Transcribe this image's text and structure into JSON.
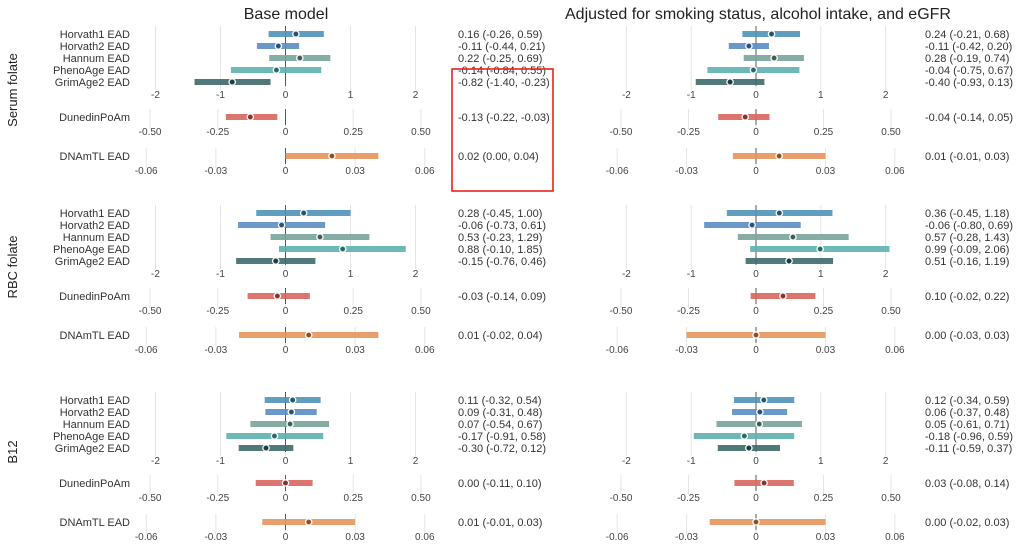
{
  "chart_data": {
    "type": "forest",
    "panel_titles": [
      "Base model",
      "Adjusted for smoking status, alcohol intake, and eGFR"
    ],
    "rows": [
      "Serum folate",
      "RBC folate",
      "B12"
    ],
    "colors": {
      "Horvath1 EAD": "#4f93b8",
      "Horvath2 EAD": "#5a8fc4",
      "Hannum EAD": "#7aa59a",
      "PhenoAge EAD": "#5fb2b0",
      "GrimAge2 EAD": "#3f6b6b",
      "DunedinPoAm": "#d9675f",
      "DNAmTL EAD": "#e6955c"
    },
    "axes": {
      "ead": {
        "lim": [
          -2.5,
          2.5
        ],
        "ticks": [
          -2,
          -1,
          0,
          1,
          2
        ]
      },
      "dunedin": {
        "lim": [
          -0.6,
          0.6
        ],
        "ticks": [
          -0.5,
          -0.25,
          0,
          0.25,
          0.5
        ]
      },
      "dnamtl": {
        "lim": [
          -0.07,
          0.07
        ],
        "ticks": [
          -0.06,
          -0.03,
          0,
          0.03,
          0.06
        ]
      }
    },
    "groups": [
      {
        "row": 0,
        "col": 0,
        "ead": [
          {
            "label": "Horvath1 EAD",
            "est": 0.16,
            "lo": -0.26,
            "hi": 0.59,
            "text": "0.16 (-0.26, 0.59)"
          },
          {
            "label": "Horvath2 EAD",
            "est": -0.11,
            "lo": -0.44,
            "hi": 0.21,
            "text": "-0.11 (-0.44, 0.21)"
          },
          {
            "label": "Hannum EAD",
            "est": 0.22,
            "lo": -0.25,
            "hi": 0.69,
            "text": "0.22 (-0.25, 0.69)"
          },
          {
            "label": "PhenoAge EAD",
            "est": -0.14,
            "lo": -0.84,
            "hi": 0.55,
            "text": "-0.14 (-0.84, 0.55)"
          },
          {
            "label": "GrimAge2 EAD",
            "est": -0.82,
            "lo": -1.4,
            "hi": -0.23,
            "text": "-0.82 (-1.40, -0.23)"
          }
        ],
        "dunedin": {
          "label": "DunedinPoAm",
          "est": -0.13,
          "lo": -0.22,
          "hi": -0.03,
          "text": "-0.13 (-0.22, -0.03)"
        },
        "dnamtl": {
          "label": "DNAmTL EAD",
          "est": 0.02,
          "lo": 0.0,
          "hi": 0.04,
          "text": "0.02 (0.00, 0.04)"
        }
      },
      {
        "row": 0,
        "col": 1,
        "ead": [
          {
            "label": "Horvath1 EAD",
            "est": 0.24,
            "lo": -0.21,
            "hi": 0.68,
            "text": "0.24 (-0.21, 0.68)"
          },
          {
            "label": "Horvath2 EAD",
            "est": -0.11,
            "lo": -0.42,
            "hi": 0.2,
            "text": "-0.11 (-0.42, 0.20)"
          },
          {
            "label": "Hannum EAD",
            "est": 0.28,
            "lo": -0.19,
            "hi": 0.74,
            "text": "0.28 (-0.19, 0.74)"
          },
          {
            "label": "PhenoAge EAD",
            "est": -0.04,
            "lo": -0.75,
            "hi": 0.67,
            "text": "-0.04 (-0.75, 0.67)"
          },
          {
            "label": "GrimAge2 EAD",
            "est": -0.4,
            "lo": -0.93,
            "hi": 0.13,
            "text": "-0.40 (-0.93, 0.13)"
          }
        ],
        "dunedin": {
          "label": "DunedinPoAm",
          "est": -0.04,
          "lo": -0.14,
          "hi": 0.05,
          "text": "-0.04 (-0.14, 0.05)"
        },
        "dnamtl": {
          "label": "DNAmTL EAD",
          "est": 0.01,
          "lo": -0.01,
          "hi": 0.03,
          "text": "0.01 (-0.01, 0.03)"
        }
      },
      {
        "row": 1,
        "col": 0,
        "ead": [
          {
            "label": "Horvath1 EAD",
            "est": 0.28,
            "lo": -0.45,
            "hi": 1.0,
            "text": "0.28 (-0.45, 1.00)"
          },
          {
            "label": "Horvath2 EAD",
            "est": -0.06,
            "lo": -0.73,
            "hi": 0.61,
            "text": "-0.06 (-0.73, 0.61)"
          },
          {
            "label": "Hannum EAD",
            "est": 0.53,
            "lo": -0.23,
            "hi": 1.29,
            "text": "0.53 (-0.23, 1.29)"
          },
          {
            "label": "PhenoAge EAD",
            "est": 0.88,
            "lo": -0.1,
            "hi": 1.85,
            "text": "0.88 (-0.10, 1.85)"
          },
          {
            "label": "GrimAge2 EAD",
            "est": -0.15,
            "lo": -0.76,
            "hi": 0.46,
            "text": "-0.15 (-0.76, 0.46)"
          }
        ],
        "dunedin": {
          "label": "DunedinPoAm",
          "est": -0.03,
          "lo": -0.14,
          "hi": 0.09,
          "text": "-0.03 (-0.14, 0.09)"
        },
        "dnamtl": {
          "label": "DNAmTL EAD",
          "est": 0.01,
          "lo": -0.02,
          "hi": 0.04,
          "text": "0.01 (-0.02, 0.04)"
        }
      },
      {
        "row": 1,
        "col": 1,
        "ead": [
          {
            "label": "Horvath1 EAD",
            "est": 0.36,
            "lo": -0.45,
            "hi": 1.18,
            "text": "0.36 (-0.45, 1.18)"
          },
          {
            "label": "Horvath2 EAD",
            "est": -0.06,
            "lo": -0.8,
            "hi": 0.69,
            "text": "-0.06 (-0.80, 0.69)"
          },
          {
            "label": "Hannum EAD",
            "est": 0.57,
            "lo": -0.28,
            "hi": 1.43,
            "text": "0.57 (-0.28, 1.43)"
          },
          {
            "label": "PhenoAge EAD",
            "est": 0.99,
            "lo": -0.09,
            "hi": 2.06,
            "text": "0.99 (-0.09, 2.06)"
          },
          {
            "label": "GrimAge2 EAD",
            "est": 0.51,
            "lo": -0.16,
            "hi": 1.19,
            "text": "0.51 (-0.16, 1.19)"
          }
        ],
        "dunedin": {
          "label": "DunedinPoAm",
          "est": 0.1,
          "lo": -0.02,
          "hi": 0.22,
          "text": "0.10 (-0.02, 0.22)"
        },
        "dnamtl": {
          "label": "DNAmTL EAD",
          "est": 0.0,
          "lo": -0.03,
          "hi": 0.03,
          "text": "0.00 (-0.03, 0.03)"
        }
      },
      {
        "row": 2,
        "col": 0,
        "ead": [
          {
            "label": "Horvath1 EAD",
            "est": 0.11,
            "lo": -0.32,
            "hi": 0.54,
            "text": "0.11 (-0.32, 0.54)"
          },
          {
            "label": "Horvath2 EAD",
            "est": 0.09,
            "lo": -0.31,
            "hi": 0.48,
            "text": "0.09 (-0.31, 0.48)"
          },
          {
            "label": "Hannum EAD",
            "est": 0.07,
            "lo": -0.54,
            "hi": 0.67,
            "text": "0.07 (-0.54, 0.67)"
          },
          {
            "label": "PhenoAge EAD",
            "est": -0.17,
            "lo": -0.91,
            "hi": 0.58,
            "text": "-0.17 (-0.91, 0.58)"
          },
          {
            "label": "GrimAge2 EAD",
            "est": -0.3,
            "lo": -0.72,
            "hi": 0.12,
            "text": "-0.30 (-0.72, 0.12)"
          }
        ],
        "dunedin": {
          "label": "DunedinPoAm",
          "est": 0.0,
          "lo": -0.11,
          "hi": 0.1,
          "text": "0.00 (-0.11, 0.10)"
        },
        "dnamtl": {
          "label": "DNAmTL EAD",
          "est": 0.01,
          "lo": -0.01,
          "hi": 0.03,
          "text": "0.01 (-0.01, 0.03)"
        }
      },
      {
        "row": 2,
        "col": 1,
        "ead": [
          {
            "label": "Horvath1 EAD",
            "est": 0.12,
            "lo": -0.34,
            "hi": 0.59,
            "text": "0.12 (-0.34, 0.59)"
          },
          {
            "label": "Horvath2 EAD",
            "est": 0.06,
            "lo": -0.37,
            "hi": 0.48,
            "text": "0.06 (-0.37, 0.48)"
          },
          {
            "label": "Hannum EAD",
            "est": 0.05,
            "lo": -0.61,
            "hi": 0.71,
            "text": "0.05 (-0.61, 0.71)"
          },
          {
            "label": "PhenoAge EAD",
            "est": -0.18,
            "lo": -0.96,
            "hi": 0.59,
            "text": "-0.18 (-0.96, 0.59)"
          },
          {
            "label": "GrimAge2 EAD",
            "est": -0.11,
            "lo": -0.59,
            "hi": 0.37,
            "text": "-0.11 (-0.59, 0.37)"
          }
        ],
        "dunedin": {
          "label": "DunedinPoAm",
          "est": 0.03,
          "lo": -0.08,
          "hi": 0.14,
          "text": "0.03 (-0.08, 0.14)"
        },
        "dnamtl": {
          "label": "DNAmTL EAD",
          "est": 0.0,
          "lo": -0.02,
          "hi": 0.03,
          "text": "0.00 (-0.02, 0.03)"
        }
      }
    ],
    "highlight": {
      "row": 0,
      "col": 0,
      "note": "estimates with CIs excluding zero highlighted in red box"
    }
  }
}
